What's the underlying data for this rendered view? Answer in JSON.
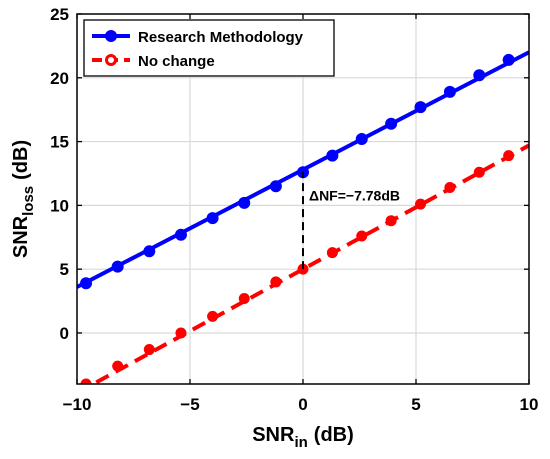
{
  "chart_data": {
    "type": "line",
    "x_label_main": "SNR",
    "x_label_sub": "in",
    "x_label_unit": "(dB)",
    "y_label_main": "SNR",
    "y_label_sub": "loss",
    "y_label_unit": "(dB)",
    "xlim": [
      -10,
      10
    ],
    "ylim": [
      -4,
      25
    ],
    "x_ticks": [
      -10,
      -5,
      0,
      5,
      10
    ],
    "x_tick_labels": [
      "−10",
      "−5",
      "0",
      "5",
      "10"
    ],
    "y_ticks": [
      0,
      5,
      10,
      15,
      20,
      25
    ],
    "y_tick_labels": [
      "0",
      "5",
      "10",
      "15",
      "20",
      "25"
    ],
    "grid": true,
    "legend_position": "top-left",
    "series": [
      {
        "name": "Research Methodology",
        "color": "#0000ff",
        "line_style": "solid",
        "marker": "filled-circle",
        "line_x": [
          -10,
          10
        ],
        "line_y": [
          3.6,
          22.0
        ],
        "marker_x": [
          -9.6,
          -8.2,
          -6.8,
          -5.4,
          -4.0,
          -2.6,
          -1.2,
          0.0,
          1.3,
          2.6,
          3.9,
          5.2,
          6.5,
          7.8,
          9.1
        ],
        "marker_y": [
          3.9,
          5.2,
          6.4,
          7.7,
          9.0,
          10.2,
          11.5,
          12.6,
          13.9,
          15.2,
          16.4,
          17.7,
          18.9,
          20.2,
          21.4
        ]
      },
      {
        "name": "No change",
        "color": "#ff0000",
        "line_style": "dashed",
        "marker": "circle",
        "line_x": [
          -10,
          10
        ],
        "line_y": [
          -4.7,
          14.7
        ],
        "marker_x": [
          -9.6,
          -8.2,
          -6.8,
          -5.4,
          -4.0,
          -2.6,
          -1.2,
          0.0,
          1.3,
          2.6,
          3.9,
          5.2,
          6.5,
          7.8,
          9.1
        ],
        "marker_y": [
          -4.0,
          -2.6,
          -1.3,
          0.0,
          1.3,
          2.7,
          4.0,
          5.0,
          6.3,
          7.6,
          8.8,
          10.1,
          11.4,
          12.6,
          13.9
        ]
      }
    ],
    "annotation": {
      "text": "ΔNF=−7.78dB",
      "x": 0,
      "y_from": 5.0,
      "y_to": 12.6
    }
  }
}
